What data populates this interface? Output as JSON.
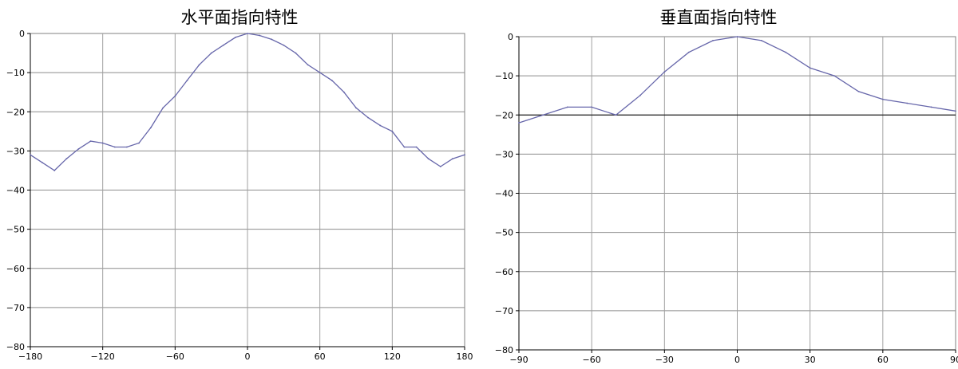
{
  "chart_data": [
    {
      "type": "line",
      "title": "水平面指向特性",
      "xlabel": "",
      "ylabel": "",
      "xlim": [
        -180,
        180
      ],
      "ylim": [
        -80,
        0
      ],
      "grid": true,
      "xticks": [
        -180,
        -120,
        -60,
        0,
        60,
        120,
        180
      ],
      "yticks": [
        0,
        -10,
        -20,
        -30,
        -40,
        -50,
        -60,
        -70,
        -80
      ],
      "xtick_labels": [
        "−180",
        "−120",
        "−60",
        "0",
        "60",
        "120",
        "180"
      ],
      "ytick_labels": [
        "0",
        "−10",
        "−20",
        "−30",
        "−40",
        "−50",
        "−60",
        "−70",
        "−80"
      ],
      "series": [
        {
          "color": "#6666aa",
          "x": [
            -180,
            -170,
            -160,
            -150,
            -140,
            -130,
            -120,
            -110,
            -100,
            -90,
            -80,
            -70,
            -60,
            -50,
            -40,
            -30,
            -20,
            -10,
            0,
            10,
            20,
            30,
            40,
            50,
            60,
            70,
            80,
            90,
            100,
            110,
            120,
            130,
            140,
            150,
            160,
            170,
            180
          ],
          "y": [
            -31,
            -33,
            -35,
            -32,
            -29.5,
            -27.5,
            -28,
            -29,
            -29,
            -28,
            -24,
            -19,
            -16,
            -12,
            -8,
            -5,
            -3,
            -1,
            0,
            -0.5,
            -1.5,
            -3,
            -5,
            -8,
            -10,
            -12,
            -15,
            -19,
            -21.5,
            -23.5,
            -25,
            -29,
            -29,
            -32,
            -34,
            -32,
            -31
          ]
        }
      ]
    },
    {
      "type": "line",
      "title": "垂直面指向特性",
      "xlabel": "",
      "ylabel": "",
      "xlim": [
        -90,
        90
      ],
      "ylim": [
        -80,
        0
      ],
      "grid": true,
      "xticks": [
        -90,
        -60,
        -30,
        0,
        30,
        60,
        90
      ],
      "yticks": [
        0,
        -10,
        -20,
        -30,
        -40,
        -50,
        -60,
        -70,
        -80
      ],
      "xtick_labels": [
        "−90",
        "−60",
        "−30",
        "0",
        "30",
        "60",
        "90"
      ],
      "ytick_labels": [
        "0",
        "−10",
        "−20",
        "−30",
        "−40",
        "−50",
        "−60",
        "−70",
        "−80"
      ],
      "reference_line": {
        "y": -20,
        "color": "#000000"
      },
      "series": [
        {
          "color": "#6666aa",
          "x": [
            -90,
            -80,
            -70,
            -60,
            -50,
            -40,
            -30,
            -20,
            -10,
            0,
            10,
            20,
            30,
            40,
            50,
            60,
            70,
            80,
            90
          ],
          "y": [
            -22,
            -20,
            -18,
            -18,
            -20,
            -15,
            -9,
            -4,
            -1,
            0,
            -1,
            -4,
            -8,
            -10,
            -14,
            -16,
            -17,
            -18,
            -19
          ]
        }
      ]
    }
  ]
}
